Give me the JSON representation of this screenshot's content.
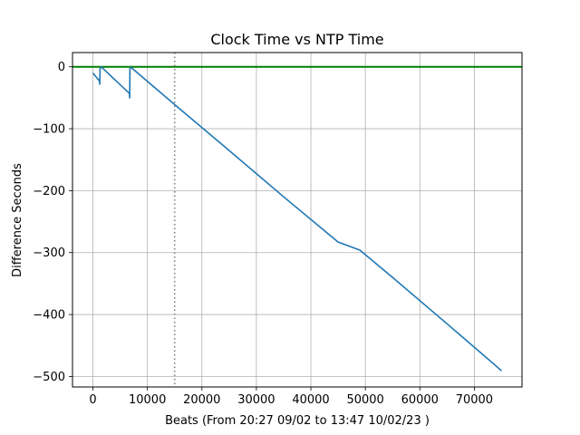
{
  "chart_data": {
    "type": "line",
    "title": "Clock Time vs NTP Time",
    "xlabel": "Beats (From 20:27 09/02 to 13:47 10/02/23 )",
    "ylabel": "Difference Seconds",
    "xlim": [
      -3750,
      78750
    ],
    "ylim": [
      -517,
      23
    ],
    "xticks": [
      0,
      10000,
      20000,
      30000,
      40000,
      50000,
      60000,
      70000
    ],
    "yticks": [
      0,
      -100,
      -200,
      -300,
      -400,
      -500
    ],
    "xtick_labels": [
      "0",
      "10000",
      "20000",
      "30000",
      "40000",
      "50000",
      "60000",
      "70000"
    ],
    "ytick_labels": [
      "0",
      "−100",
      "−200",
      "−300",
      "−400",
      "−500"
    ],
    "grid": true,
    "series": [
      {
        "color": "#1f77b4",
        "x": [
          0,
          1200,
          1250,
          1300,
          1500,
          6700,
          6750,
          6800,
          7000,
          15000,
          25000,
          35000,
          45000,
          49000,
          55000,
          65000,
          72000,
          75000
        ],
        "y": [
          -10,
          -23,
          -28,
          -3,
          0,
          -43,
          -50,
          -3,
          -1,
          -61,
          -135,
          -210,
          -283,
          -296,
          -340,
          -415,
          -468,
          -491
        ]
      }
    ],
    "reference_lines": [
      {
        "orientation": "horizontal",
        "y": 0,
        "color": "#008000",
        "style": "solid"
      },
      {
        "orientation": "vertical",
        "x": 15000,
        "color": "#808080",
        "style": "dotted"
      }
    ]
  }
}
